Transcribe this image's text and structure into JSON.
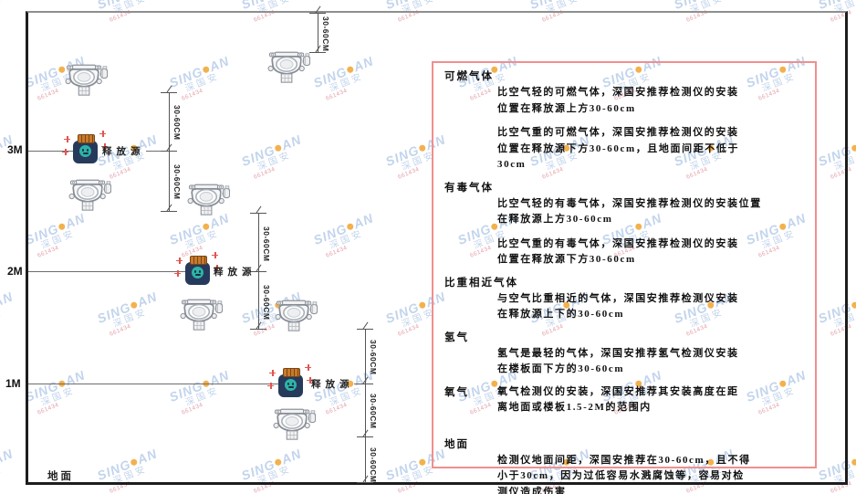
{
  "diagram": {
    "height_labels": [
      "3M",
      "2M",
      "1M"
    ],
    "floor_label": "地面",
    "source_label": "释放源",
    "dim_label": "30-60CM"
  },
  "panel": {
    "sections": [
      {
        "heading": "可燃气体",
        "inline": false,
        "gap_top": false,
        "paras": [
          [
            "比空气轻的可燃气体，深国安推荐检测仪的安装",
            "位置在释放源上方30-60cm"
          ],
          [
            "比空气重的可燃气体，深国安推荐检测仪的安装",
            "位置在释放源下方30-60cm，且地面间距不低于",
            "30cm"
          ]
        ]
      },
      {
        "heading": "有毒气体",
        "inline": false,
        "gap_top": false,
        "paras": [
          [
            "比空气轻的有毒气体，深国安推荐检测仪的安装位置",
            "在释放源上方30-60cm"
          ],
          [
            "比空气重的有毒气体，深国安推荐检测仪的安装",
            "位置在释放源下方30-60cm"
          ]
        ]
      },
      {
        "heading": "比重相近气体",
        "inline": false,
        "gap_top": false,
        "paras": [
          [
            "与空气比重相近的气体，深国安推荐检测仪安装",
            "在释放源上下的30-60cm"
          ]
        ]
      },
      {
        "heading": "氢气",
        "inline": false,
        "gap_top": false,
        "paras": [
          [
            "氢气是最轻的气体，深国安推荐氢气检测仪安装",
            "在楼板面下方的30-60cm"
          ]
        ]
      },
      {
        "heading": "氧气",
        "inline": true,
        "gap_top": false,
        "paras": [
          [
            "氧气检测仪的安装，深国安推荐其安装高度在距",
            "离地面或楼板1.5-2M的范围内"
          ]
        ]
      },
      {
        "heading": "地面",
        "inline": false,
        "gap_top": true,
        "paras": [
          [
            "检测仪地面间距，深国安推荐在30-60cm，且不得",
            "小于30cm，因为过低容易水溅腐蚀等，容易对检",
            "测仪造成伤害"
          ]
        ]
      }
    ]
  },
  "watermark": {
    "brand_left": "SING",
    "brand_right": "AN",
    "cjk": "深国安",
    "code": "661434"
  },
  "icons": {
    "detector": "gas-detector-icon",
    "source": "release-source-icon",
    "watermark_dot": "brand-dot-icon"
  },
  "colors": {
    "panel_border": "#f0908e",
    "source_body": "#263a5c",
    "source_cap": "#c97a2b",
    "source_face": "#2fb3a9",
    "spark": "#e05550",
    "watermark_blue": "#bcd0ea",
    "watermark_dot": "#f2a93b",
    "watermark_code": "#e096a0",
    "dim_line": "#555555"
  }
}
